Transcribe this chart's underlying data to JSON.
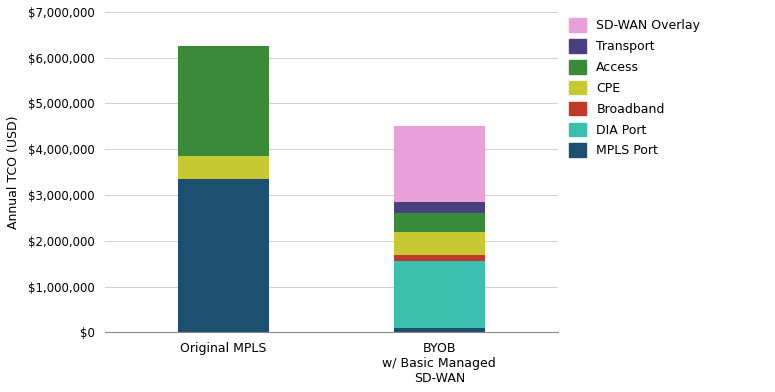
{
  "categories": [
    "Original MPLS",
    "BYOB\nw/ Basic Managed\nSD-WAN"
  ],
  "segments": [
    {
      "label": "MPLS Port",
      "color": "#1d5070",
      "values": [
        3350000,
        100000
      ]
    },
    {
      "label": "DIA Port",
      "color": "#3dbfb0",
      "values": [
        0,
        1450000
      ]
    },
    {
      "label": "Broadband",
      "color": "#c0392b",
      "values": [
        0,
        150000
      ]
    },
    {
      "label": "CPE",
      "color": "#c8c832",
      "values": [
        500000,
        500000
      ]
    },
    {
      "label": "Access",
      "color": "#3a8a3a",
      "values": [
        2400000,
        400000
      ]
    },
    {
      "label": "Transport",
      "color": "#4a4080",
      "values": [
        0,
        250000
      ]
    },
    {
      "label": "SD-WAN Overlay",
      "color": "#e8a0d8",
      "values": [
        0,
        1650000
      ]
    }
  ],
  "ylabel": "Annual TCO (USD)",
  "ylim": [
    0,
    7000000
  ],
  "yticks": [
    0,
    1000000,
    2000000,
    3000000,
    4000000,
    5000000,
    6000000,
    7000000
  ],
  "ytick_labels": [
    "$0",
    "$1,000,000",
    "$2,000,000",
    "$3,000,000",
    "$4,000,000",
    "$5,000,000",
    "$6,000,000",
    "$7,000,000"
  ],
  "background_color": "#ffffff",
  "grid_color": "#d0d0d0",
  "bar_width": 0.42,
  "legend_order": [
    6,
    5,
    4,
    3,
    2,
    1,
    0
  ],
  "figsize": [
    7.75,
    3.92
  ],
  "dpi": 100
}
